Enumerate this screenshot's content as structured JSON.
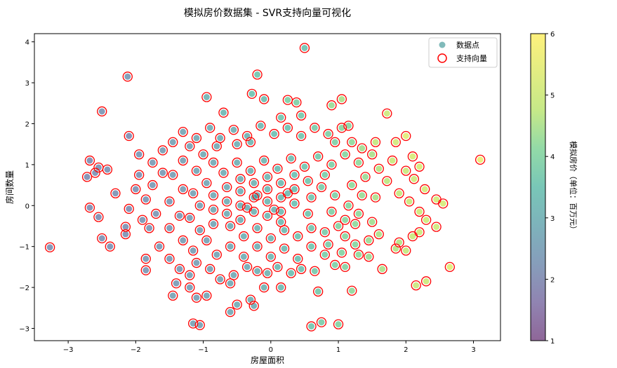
{
  "chart_data": {
    "type": "scatter",
    "title": "模拟房价数据集 - SVR支持向量可视化",
    "xlabel": "房屋面积",
    "ylabel": "房间数量",
    "xlim": [
      -3.5,
      3.4
    ],
    "ylim": [
      -3.3,
      4.2
    ],
    "xticks": [
      -3,
      -2,
      -1,
      0,
      1,
      2,
      3
    ],
    "yticks": [
      -3,
      -2,
      -1,
      0,
      1,
      2,
      3,
      4
    ],
    "legend": {
      "placement": "top-right",
      "points_label": "数据点",
      "sv_label": "支持向量"
    },
    "colorbar": {
      "label": "模拟房价（单位：百万元）",
      "min": 1,
      "max": 6,
      "ticks": [
        1,
        2,
        3,
        4,
        5,
        6
      ],
      "colormap": "viridis",
      "alpha": 0.6
    },
    "colors": {
      "sv_edge": "#ff0000"
    },
    "grid": false,
    "series": [
      {
        "name": "数据点",
        "points": [
          [
            0.5,
            3.85,
            3.5
          ],
          [
            -2.12,
            3.15,
            2.4
          ],
          [
            -0.2,
            3.2,
            3.6
          ],
          [
            -2.5,
            2.3,
            2.3
          ],
          [
            -0.28,
            2.73,
            3.5
          ],
          [
            0.25,
            2.58,
            3.9
          ],
          [
            1.05,
            2.6,
            4.5
          ],
          [
            -0.95,
            2.65,
            3.1
          ],
          [
            -0.1,
            2.6,
            3.4
          ],
          [
            0.38,
            2.52,
            3.9
          ],
          [
            -2.1,
            1.7,
            2.1
          ],
          [
            -0.3,
            1.55,
            3.2
          ],
          [
            0.45,
            2.2,
            3.7
          ],
          [
            0.9,
            2.45,
            4.3
          ],
          [
            -0.7,
            2.27,
            3.2
          ],
          [
            1.72,
            2.25,
            5.0
          ],
          [
            3.1,
            1.12,
            5.6
          ],
          [
            -2.68,
            1.1,
            2.1
          ],
          [
            -2.42,
            0.88,
            2.2
          ],
          [
            -2.6,
            0.8,
            2.2
          ],
          [
            -2.55,
            0.93,
            2.2
          ],
          [
            -2.72,
            0.7,
            2.1
          ],
          [
            -1.95,
            0.75,
            2.2
          ],
          [
            -2.0,
            0.4,
            2.2
          ],
          [
            -2.68,
            -0.05,
            2.1
          ],
          [
            -2.55,
            -0.28,
            2.1
          ],
          [
            -2.1,
            -0.08,
            2.1
          ],
          [
            -2.15,
            -0.52,
            2.2
          ],
          [
            -2.15,
            -0.7,
            2.2
          ],
          [
            -2.5,
            -0.8,
            2.2
          ],
          [
            -2.38,
            -1.0,
            2.2
          ],
          [
            -3.27,
            -1.02,
            2.2
          ],
          [
            -1.85,
            -1.3,
            2.4
          ],
          [
            -1.85,
            -1.58,
            2.3
          ],
          [
            -1.2,
            -1.7,
            2.6
          ],
          [
            -1.45,
            -2.2,
            2.6
          ],
          [
            -1.2,
            -2.0,
            2.5
          ],
          [
            -1.1,
            -2.25,
            2.6
          ],
          [
            -0.95,
            -2.2,
            2.7
          ],
          [
            -0.6,
            -2.6,
            2.8
          ],
          [
            -0.5,
            -2.42,
            2.9
          ],
          [
            -0.3,
            -2.3,
            3.0
          ],
          [
            -0.1,
            -2.0,
            3.1
          ],
          [
            0.15,
            -2.0,
            3.3
          ],
          [
            0.6,
            -2.95,
            3.6
          ],
          [
            0.75,
            -2.85,
            3.8
          ],
          [
            1.0,
            -2.9,
            4.0
          ],
          [
            0.7,
            -2.1,
            3.7
          ],
          [
            1.2,
            -2.08,
            4.2
          ],
          [
            1.65,
            -1.55,
            4.5
          ],
          [
            2.15,
            -1.95,
            4.9
          ],
          [
            2.3,
            -1.85,
            5.0
          ],
          [
            -1.15,
            -2.88,
            2.6
          ],
          [
            -1.05,
            -2.92,
            2.6
          ],
          [
            1.85,
            -1.05,
            4.6
          ],
          [
            2.0,
            -1.1,
            4.8
          ],
          [
            2.1,
            -0.75,
            4.9
          ],
          [
            2.45,
            -0.52,
            5.0
          ],
          [
            2.65,
            -1.5,
            5.4
          ],
          [
            2.3,
            -0.35,
            5.0
          ],
          [
            2.2,
            -0.15,
            5.0
          ],
          [
            2.05,
            0.1,
            4.9
          ],
          [
            2.45,
            0.15,
            5.1
          ],
          [
            2.55,
            0.05,
            5.2
          ],
          [
            2.28,
            0.4,
            5.1
          ],
          [
            2.12,
            0.65,
            5.0
          ],
          [
            2.2,
            0.95,
            5.2
          ],
          [
            2.1,
            1.2,
            5.2
          ],
          [
            2.0,
            1.7,
            5.4
          ],
          [
            1.85,
            1.55,
            5.1
          ],
          [
            1.8,
            1.1,
            4.9
          ],
          [
            1.55,
            1.55,
            4.8
          ],
          [
            1.9,
            0.3,
            4.8
          ],
          [
            1.72,
            0.6,
            4.7
          ],
          [
            1.6,
            0.9,
            4.6
          ],
          [
            1.5,
            1.25,
            4.5
          ],
          [
            1.35,
            1.4,
            4.4
          ],
          [
            1.55,
            0.2,
            4.5
          ],
          [
            1.5,
            -0.4,
            4.4
          ],
          [
            1.6,
            -0.7,
            4.5
          ],
          [
            1.45,
            -0.85,
            4.3
          ],
          [
            1.25,
            -0.45,
            4.2
          ],
          [
            1.1,
            -0.75,
            4.1
          ],
          [
            1.3,
            -1.2,
            4.2
          ],
          [
            1.1,
            -1.5,
            4.0
          ],
          [
            0.95,
            -1.45,
            3.9
          ],
          [
            0.8,
            -1.2,
            3.8
          ],
          [
            0.65,
            -1.6,
            3.7
          ],
          [
            0.45,
            -1.55,
            3.5
          ],
          [
            0.3,
            -1.65,
            3.4
          ],
          [
            0.1,
            -1.5,
            3.3
          ],
          [
            -0.05,
            -1.65,
            3.1
          ],
          [
            -0.2,
            -1.6,
            3.0
          ],
          [
            -0.35,
            -1.5,
            2.9
          ],
          [
            -0.55,
            -1.7,
            2.8
          ],
          [
            -0.75,
            -1.8,
            2.7
          ],
          [
            -0.9,
            -1.55,
            2.6
          ],
          [
            -1.1,
            -1.4,
            2.5
          ],
          [
            -1.35,
            -1.55,
            2.4
          ],
          [
            -1.5,
            -1.3,
            2.4
          ],
          [
            -1.65,
            -1.0,
            2.4
          ],
          [
            -1.8,
            -0.55,
            2.3
          ],
          [
            -1.7,
            -0.2,
            2.3
          ],
          [
            -1.85,
            0.15,
            2.3
          ],
          [
            -1.75,
            0.5,
            2.4
          ],
          [
            -1.6,
            0.8,
            2.4
          ],
          [
            -1.75,
            1.05,
            2.4
          ],
          [
            -1.6,
            1.35,
            2.5
          ],
          [
            -1.45,
            1.55,
            2.6
          ],
          [
            -1.3,
            1.8,
            2.7
          ],
          [
            -1.1,
            1.65,
            2.8
          ],
          [
            -0.9,
            1.9,
            2.9
          ],
          [
            -0.75,
            1.65,
            2.9
          ],
          [
            -0.55,
            1.85,
            3.0
          ],
          [
            -0.35,
            1.7,
            3.1
          ],
          [
            -0.15,
            1.95,
            3.2
          ],
          [
            0.05,
            1.75,
            3.4
          ],
          [
            0.25,
            1.9,
            3.5
          ],
          [
            0.45,
            1.7,
            3.6
          ],
          [
            0.65,
            1.9,
            3.8
          ],
          [
            0.85,
            1.75,
            3.9
          ],
          [
            1.05,
            1.9,
            4.1
          ],
          [
            1.2,
            1.55,
            4.2
          ],
          [
            0.15,
            2.15,
            3.6
          ],
          [
            -0.5,
            1.5,
            3.0
          ],
          [
            -1.0,
            1.25,
            2.8
          ],
          [
            -1.3,
            1.1,
            2.6
          ],
          [
            -1.45,
            0.75,
            2.5
          ],
          [
            -1.3,
            0.4,
            2.5
          ],
          [
            -1.5,
            0.1,
            2.4
          ],
          [
            -1.35,
            -0.25,
            2.4
          ],
          [
            -1.5,
            -0.55,
            2.4
          ],
          [
            -1.3,
            -0.85,
            2.5
          ],
          [
            -1.15,
            -1.1,
            2.5
          ],
          [
            -0.95,
            -0.85,
            2.6
          ],
          [
            -0.8,
            -1.2,
            2.7
          ],
          [
            -0.6,
            -1.0,
            2.8
          ],
          [
            -0.4,
            -1.25,
            2.9
          ],
          [
            -0.2,
            -1.0,
            3.0
          ],
          [
            0.0,
            -1.25,
            3.2
          ],
          [
            0.2,
            -1.05,
            3.3
          ],
          [
            0.4,
            -1.3,
            3.4
          ],
          [
            0.6,
            -1.0,
            3.6
          ],
          [
            0.85,
            -0.95,
            3.8
          ],
          [
            1.05,
            -1.15,
            4.0
          ],
          [
            1.25,
            -0.95,
            4.1
          ],
          [
            1.0,
            -0.5,
            4.0
          ],
          [
            0.8,
            -0.65,
            3.8
          ],
          [
            0.6,
            -0.55,
            3.6
          ],
          [
            0.4,
            -0.75,
            3.5
          ],
          [
            0.2,
            -0.6,
            3.3
          ],
          [
            0.0,
            -0.8,
            3.2
          ],
          [
            -0.2,
            -0.55,
            3.1
          ],
          [
            -0.4,
            -0.75,
            3.0
          ],
          [
            -0.6,
            -0.5,
            2.9
          ],
          [
            -0.85,
            -0.45,
            2.7
          ],
          [
            -1.05,
            -0.6,
            2.6
          ],
          [
            -1.2,
            -0.3,
            2.5
          ],
          [
            -1.05,
            0.0,
            2.6
          ],
          [
            -1.15,
            0.3,
            2.6
          ],
          [
            -0.95,
            0.55,
            2.7
          ],
          [
            -1.1,
            0.85,
            2.7
          ],
          [
            -0.85,
            1.05,
            2.8
          ],
          [
            -0.7,
            0.8,
            2.9
          ],
          [
            -0.5,
            1.05,
            3.0
          ],
          [
            -0.3,
            0.85,
            3.1
          ],
          [
            -0.1,
            1.1,
            3.2
          ],
          [
            0.1,
            0.9,
            3.3
          ],
          [
            0.3,
            1.15,
            3.4
          ],
          [
            0.5,
            0.95,
            3.6
          ],
          [
            0.7,
            1.2,
            3.7
          ],
          [
            0.9,
            1.0,
            3.9
          ],
          [
            1.1,
            1.25,
            4.1
          ],
          [
            1.3,
            1.05,
            4.2
          ],
          [
            1.4,
            0.7,
            4.3
          ],
          [
            1.2,
            0.5,
            4.2
          ],
          [
            1.35,
            0.25,
            4.3
          ],
          [
            1.15,
            0.0,
            4.1
          ],
          [
            1.3,
            -0.2,
            4.2
          ],
          [
            1.1,
            -0.35,
            4.1
          ],
          [
            0.9,
            -0.15,
            3.9
          ],
          [
            0.95,
            0.25,
            3.9
          ],
          [
            0.75,
            0.45,
            3.8
          ],
          [
            0.8,
            0.75,
            3.8
          ],
          [
            0.55,
            0.6,
            3.6
          ],
          [
            0.6,
            0.2,
            3.6
          ],
          [
            0.55,
            -0.2,
            3.6
          ],
          [
            0.35,
            0.05,
            3.4
          ],
          [
            0.35,
            0.4,
            3.4
          ],
          [
            0.35,
            0.75,
            3.4
          ],
          [
            0.15,
            0.55,
            3.3
          ],
          [
            0.15,
            0.2,
            3.3
          ],
          [
            0.15,
            -0.15,
            3.3
          ],
          [
            0.15,
            -0.4,
            3.3
          ],
          [
            -0.05,
            -0.25,
            3.2
          ],
          [
            -0.05,
            0.1,
            3.2
          ],
          [
            -0.05,
            0.4,
            3.2
          ],
          [
            -0.05,
            0.7,
            3.2
          ],
          [
            -0.25,
            0.55,
            3.1
          ],
          [
            -0.25,
            0.2,
            3.1
          ],
          [
            -0.25,
            -0.15,
            3.1
          ],
          [
            -0.45,
            -0.35,
            3.0
          ],
          [
            -0.45,
            0.0,
            3.0
          ],
          [
            -0.45,
            0.35,
            3.0
          ],
          [
            -0.45,
            0.65,
            3.0
          ],
          [
            -0.65,
            0.45,
            2.9
          ],
          [
            -0.65,
            0.1,
            2.9
          ],
          [
            -0.65,
            -0.2,
            2.9
          ],
          [
            -0.85,
            -0.1,
            2.8
          ],
          [
            -0.85,
            0.25,
            2.8
          ],
          [
            -0.2,
            0.25,
            3.0
          ],
          [
            0.05,
            -0.1,
            3.1
          ],
          [
            0.25,
            0.3,
            3.3
          ],
          [
            -0.35,
            -0.05,
            3.0
          ],
          [
            -1.4,
            -1.9,
            2.4
          ],
          [
            -0.25,
            -2.45,
            2.9
          ],
          [
            1.9,
            -0.9,
            4.6
          ],
          [
            2.0,
            0.85,
            4.9
          ],
          [
            1.15,
            1.95,
            4.1
          ],
          [
            -1.95,
            1.25,
            2.3
          ],
          [
            -1.2,
            1.45,
            2.6
          ],
          [
            -0.8,
            1.45,
            2.8
          ],
          [
            0.95,
            1.55,
            3.9
          ],
          [
            1.45,
            -1.25,
            4.3
          ],
          [
            -2.3,
            0.3,
            2.2
          ],
          [
            -1.9,
            -0.35,
            2.3
          ],
          [
            2.2,
            -0.65,
            5.0
          ],
          [
            -0.6,
            -1.9,
            2.8
          ]
        ]
      }
    ]
  }
}
